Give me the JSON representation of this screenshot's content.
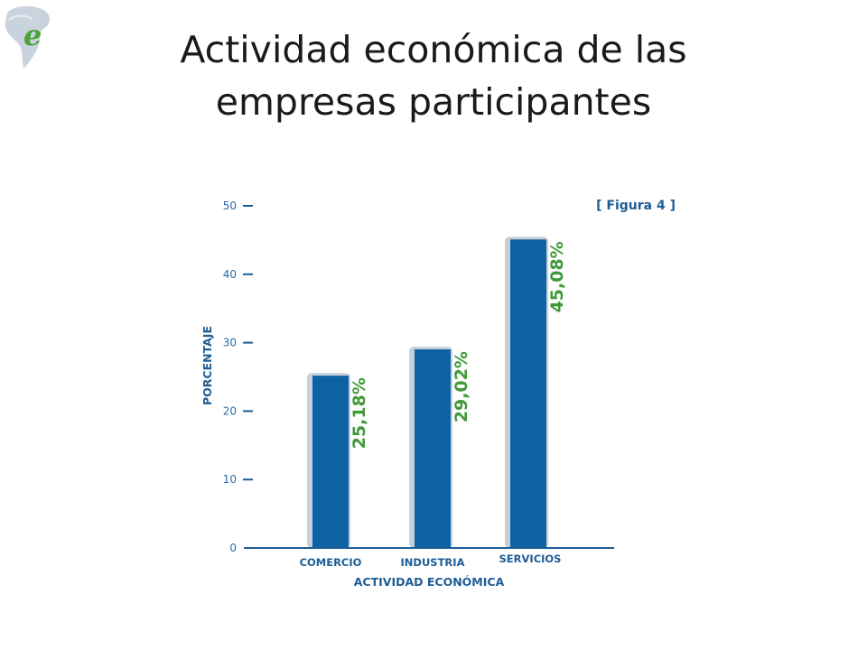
{
  "slide": {
    "title_line1": "Actividad económica de las",
    "title_line2": "empresas participantes",
    "logo_letter": "e"
  },
  "colors": {
    "bar": "#0d62a4",
    "bar_shadow": "#b9c3d0",
    "axis": "#1d5d96",
    "value_label": "#3f9a3a",
    "title": "#1a1a1a"
  },
  "chart_data": {
    "type": "bar",
    "figure_label": "[ Figura 4 ]",
    "categories": [
      "COMERCIO",
      "INDUSTRIA",
      "SERVICIOS"
    ],
    "values": [
      25.18,
      29.02,
      45.08
    ],
    "value_labels": [
      "25,18%",
      "29,02%",
      "45,08%"
    ],
    "xlabel": "ACTIVIDAD ECONÓMICA",
    "ylabel": "PORCENTAJE",
    "ylim": [
      0,
      50
    ],
    "yticks": [
      0,
      10,
      20,
      30,
      40,
      50
    ],
    "grid": false,
    "legend": "none"
  }
}
